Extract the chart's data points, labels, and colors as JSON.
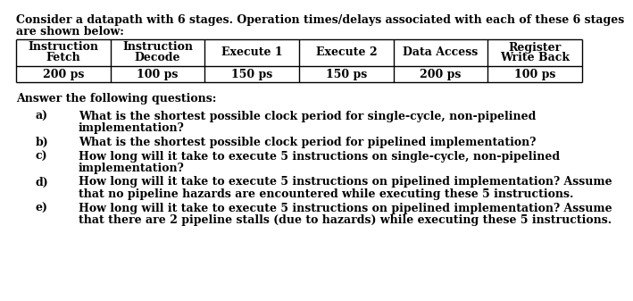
{
  "intro_line1": "Consider a datapath with 6 stages. Operation times/delays associated with each of these 6 stages",
  "intro_line2": "are shown below:",
  "table_headers": [
    "Instruction\nFetch",
    "Instruction\nDecode",
    "Execute 1",
    "Execute 2",
    "Data Access",
    "Register\nWrite Back"
  ],
  "table_values": [
    "200 ps",
    "100 ps",
    "150 ps",
    "150 ps",
    "200 ps",
    "100 ps"
  ],
  "answer_header": "Answer the following questions:",
  "questions": [
    [
      "a)",
      "What is the shortest possible clock period for single-cycle, non-pipelined",
      "implementation?"
    ],
    [
      "b)",
      "What is the shortest possible clock period for pipelined implementation?",
      ""
    ],
    [
      "c)",
      "How long will it take to execute 5 instructions on single-cycle, non-pipelined",
      "implementation?"
    ],
    [
      "d)",
      "How long will it take to execute 5 instructions on pipelined implementation? Assume",
      "that no pipeline hazards are encountered while executing these 5 instructions."
    ],
    [
      "e)",
      "How long will it take to execute 5 instructions on pipelined implementation? Assume",
      "that there are 2 pipeline stalls (due to hazards) while executing these 5 instructions."
    ]
  ],
  "bg_color": "#ffffff",
  "text_color": "#000000",
  "border_color": "#000000",
  "font_size": 9.0,
  "font_weight": "bold",
  "font_family": "serif"
}
